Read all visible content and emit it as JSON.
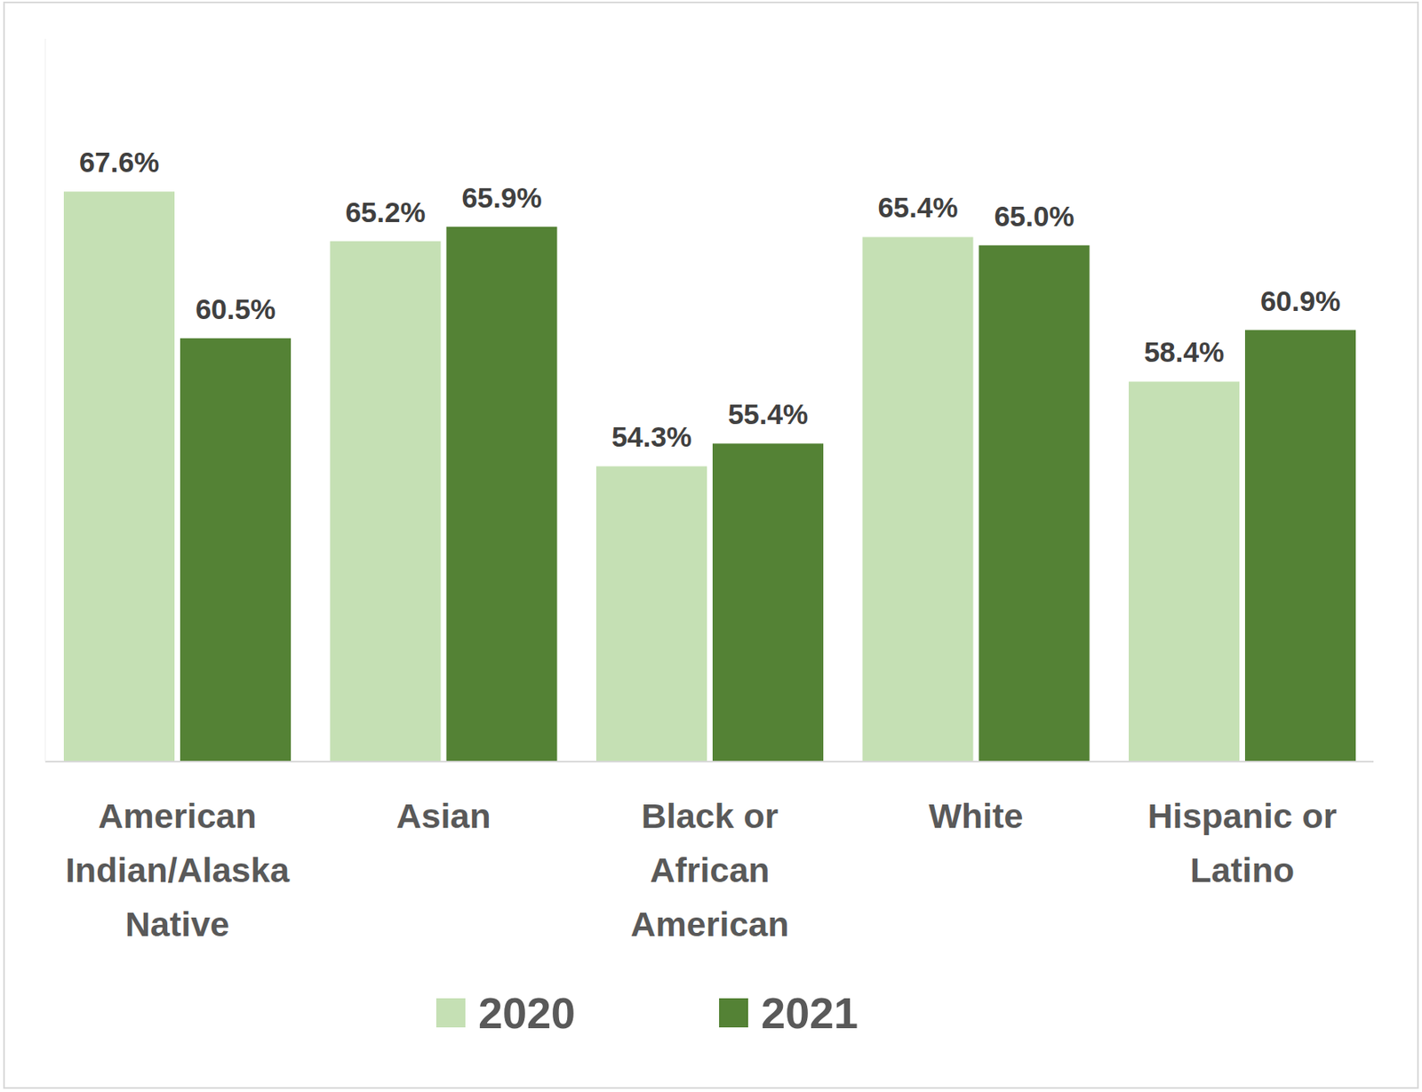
{
  "chart_data": {
    "type": "bar",
    "categories": [
      "American Indian/Alaska Native",
      "Asian",
      "Black or African American",
      "White",
      "Hispanic or Latino"
    ],
    "series": [
      {
        "name": "2020",
        "color": "#c5e0b4",
        "values": [
          67.6,
          65.2,
          54.3,
          65.4,
          58.4
        ],
        "value_labels": [
          "67.6%",
          "65.2%",
          "54.3%",
          "65.4%",
          "58.4%"
        ]
      },
      {
        "name": "2021",
        "color": "#548235",
        "values": [
          60.5,
          65.9,
          55.4,
          65.0,
          60.9
        ],
        "value_labels": [
          "60.5%",
          "65.9%",
          "55.4%",
          "65.0%",
          "60.9%"
        ]
      }
    ],
    "ylim": [
      40,
      75
    ],
    "yticks": [],
    "grid": false,
    "data_labels": true,
    "tick_labels": "x",
    "legend": "bottom"
  }
}
